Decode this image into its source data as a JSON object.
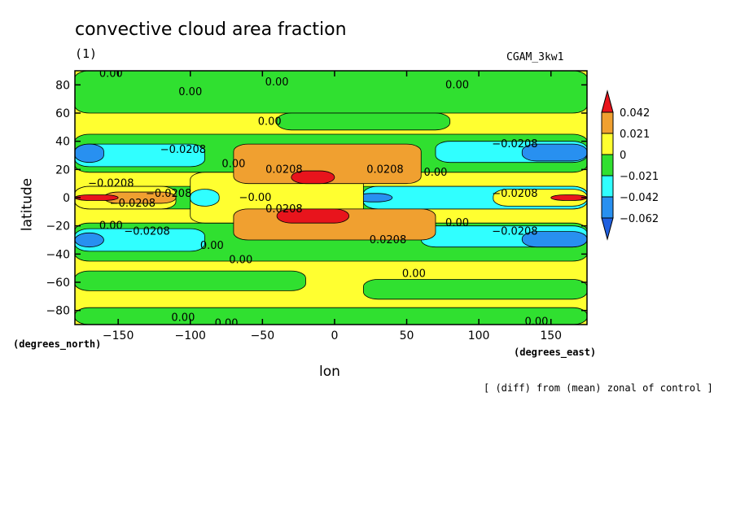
{
  "chart_data": {
    "type": "heatmap",
    "title": "convective cloud area fraction",
    "subtitle": "(1)",
    "run_label": "CGAM_3kw1",
    "xlabel": "lon",
    "ylabel": "latitude",
    "x_unit": "(degrees_east)",
    "y_unit": "(degrees_north)",
    "footnote": "[ (diff) from (mean) zonal of control ]",
    "xlim": [
      -180,
      175
    ],
    "ylim": [
      -90,
      90
    ],
    "x_ticks": [
      {
        "value": -150,
        "label": "−150"
      },
      {
        "value": -100,
        "label": "−100"
      },
      {
        "value": -50,
        "label": "−50"
      },
      {
        "value": 0,
        "label": "0"
      },
      {
        "value": 50,
        "label": "50"
      },
      {
        "value": 100,
        "label": "100"
      },
      {
        "value": 150,
        "label": "150"
      }
    ],
    "y_ticks": [
      {
        "value": 80,
        "label": "80"
      },
      {
        "value": 60,
        "label": "60"
      },
      {
        "value": 40,
        "label": "40"
      },
      {
        "value": 20,
        "label": "20"
      },
      {
        "value": 0,
        "label": "0"
      },
      {
        "value": -20,
        "label": "−20"
      },
      {
        "value": -40,
        "label": "−40"
      },
      {
        "value": -60,
        "label": "−60"
      },
      {
        "value": -80,
        "label": "−80"
      }
    ],
    "colorbar": {
      "labels": [
        "0.042",
        "0.021",
        "0",
        "−0.021",
        "−0.042",
        "−0.062"
      ],
      "colors": [
        "#e8141c",
        "#f0a030",
        "#ffff30",
        "#30e030",
        "#30ffff",
        "#2890f0",
        "#2060e0"
      ]
    },
    "background_color": "#ffff30",
    "regions": [
      {
        "fill": "#30e030",
        "lon": [
          -180,
          175
        ],
        "lat": [
          -90,
          -78
        ]
      },
      {
        "fill": "#30e030",
        "lon": [
          -180,
          -20
        ],
        "lat": [
          -66,
          -52
        ]
      },
      {
        "fill": "#30e030",
        "lon": [
          20,
          175
        ],
        "lat": [
          -72,
          -58
        ]
      },
      {
        "fill": "#30e030",
        "lon": [
          -180,
          175
        ],
        "lat": [
          -45,
          -18
        ]
      },
      {
        "fill": "#30e030",
        "lon": [
          -180,
          175
        ],
        "lat": [
          18,
          45
        ]
      },
      {
        "fill": "#30e030",
        "lon": [
          -180,
          175
        ],
        "lat": [
          60,
          90
        ]
      },
      {
        "fill": "#30e030",
        "lon": [
          -40,
          80
        ],
        "lat": [
          48,
          60
        ]
      },
      {
        "fill": "#30e030",
        "lon": [
          -180,
          175
        ],
        "lat": [
          -8,
          8
        ]
      },
      {
        "fill": "#30ffff",
        "lon": [
          -180,
          -90
        ],
        "lat": [
          -38,
          -22
        ]
      },
      {
        "fill": "#30ffff",
        "lon": [
          -180,
          -90
        ],
        "lat": [
          22,
          38
        ]
      },
      {
        "fill": "#30ffff",
        "lon": [
          60,
          175
        ],
        "lat": [
          -35,
          -20
        ]
      },
      {
        "fill": "#30ffff",
        "lon": [
          70,
          175
        ],
        "lat": [
          25,
          40
        ]
      },
      {
        "fill": "#30ffff",
        "lon": [
          20,
          175
        ],
        "lat": [
          -8,
          8
        ]
      },
      {
        "fill": "#2890f0",
        "lon": [
          -180,
          -160
        ],
        "lat": [
          -35,
          -25
        ]
      },
      {
        "fill": "#2890f0",
        "lon": [
          -180,
          -160
        ],
        "lat": [
          25,
          38
        ]
      },
      {
        "fill": "#2890f0",
        "lon": [
          130,
          175
        ],
        "lat": [
          -35,
          -24
        ]
      },
      {
        "fill": "#2890f0",
        "lon": [
          130,
          175
        ],
        "lat": [
          26,
          38
        ]
      },
      {
        "fill": "#2890f0",
        "lon": [
          15,
          40
        ],
        "lat": [
          -3,
          3
        ]
      },
      {
        "fill": "#ffff30",
        "lon": [
          -100,
          20
        ],
        "lat": [
          -18,
          18
        ]
      },
      {
        "fill": "#ffff30",
        "lon": [
          -180,
          -110
        ],
        "lat": [
          -8,
          8
        ]
      },
      {
        "fill": "#ffff30",
        "lon": [
          110,
          175
        ],
        "lat": [
          -6,
          6
        ]
      },
      {
        "fill": "#f0a030",
        "lon": [
          -70,
          60
        ],
        "lat": [
          10,
          38
        ]
      },
      {
        "fill": "#f0a030",
        "lon": [
          -70,
          70
        ],
        "lat": [
          -30,
          -8
        ]
      },
      {
        "fill": "#f0a030",
        "lon": [
          -160,
          -110
        ],
        "lat": [
          -4,
          4
        ]
      },
      {
        "fill": "#e8141c",
        "lon": [
          -30,
          0
        ],
        "lat": [
          10,
          19
        ]
      },
      {
        "fill": "#e8141c",
        "lon": [
          -40,
          10
        ],
        "lat": [
          -18,
          -8
        ]
      },
      {
        "fill": "#e8141c",
        "lon": [
          -180,
          -150
        ],
        "lat": [
          -2,
          2
        ]
      },
      {
        "fill": "#e8141c",
        "lon": [
          150,
          175
        ],
        "lat": [
          -2,
          2
        ]
      },
      {
        "fill": "#30ffff",
        "lon": [
          -100,
          -80
        ],
        "lat": [
          -6,
          6
        ]
      }
    ],
    "contour_labels": [
      {
        "text": "0.00",
        "lon": -155,
        "lat": 88
      },
      {
        "text": "0.00",
        "lon": -100,
        "lat": 75
      },
      {
        "text": "0.00",
        "lon": -40,
        "lat": 82
      },
      {
        "text": "0.00",
        "lon": 85,
        "lat": 80
      },
      {
        "text": "0.00",
        "lon": -45,
        "lat": 54
      },
      {
        "text": "0.00",
        "lon": -70,
        "lat": 24
      },
      {
        "text": "−0.0208",
        "lon": -105,
        "lat": 34
      },
      {
        "text": "−0.0208",
        "lon": 125,
        "lat": 38
      },
      {
        "text": "0.0208",
        "lon": -35,
        "lat": 20
      },
      {
        "text": "0.0208",
        "lon": 35,
        "lat": 20
      },
      {
        "text": "0.00",
        "lon": 70,
        "lat": 18
      },
      {
        "text": "−0.0208",
        "lon": -155,
        "lat": 10
      },
      {
        "text": "−0.0208",
        "lon": -115,
        "lat": 3
      },
      {
        "text": "−0.00",
        "lon": -55,
        "lat": 0
      },
      {
        "text": "−0.0208",
        "lon": 125,
        "lat": 3
      },
      {
        "text": "0.0208",
        "lon": -35,
        "lat": -8
      },
      {
        "text": "−0.0208",
        "lon": -140,
        "lat": -4
      },
      {
        "text": "0.00",
        "lon": 85,
        "lat": -18
      },
      {
        "text": "0.00",
        "lon": -155,
        "lat": -20
      },
      {
        "text": "−0.0208",
        "lon": -130,
        "lat": -24
      },
      {
        "text": "−0.0208",
        "lon": 125,
        "lat": -24
      },
      {
        "text": "0.0208",
        "lon": 37,
        "lat": -30
      },
      {
        "text": "0.00",
        "lon": -85,
        "lat": -34
      },
      {
        "text": "0.00",
        "lon": -65,
        "lat": -44
      },
      {
        "text": "0.00",
        "lon": 55,
        "lat": -54
      },
      {
        "text": "0.00",
        "lon": -105,
        "lat": -85
      },
      {
        "text": "0.00",
        "lon": -75,
        "lat": -89
      },
      {
        "text": "0.00",
        "lon": 140,
        "lat": -88
      }
    ]
  }
}
